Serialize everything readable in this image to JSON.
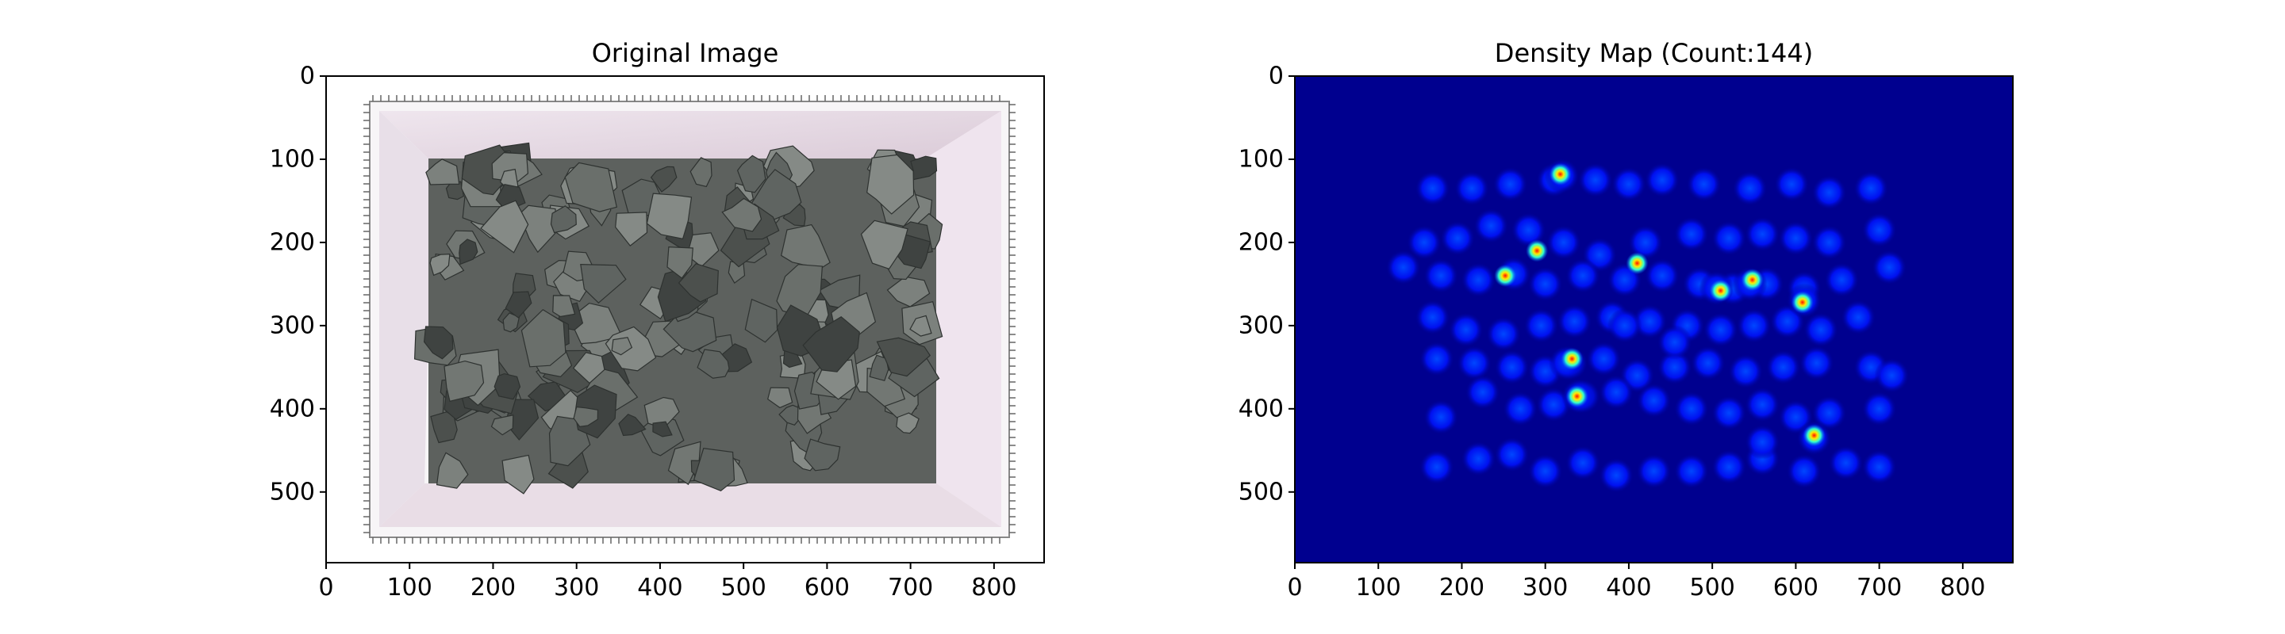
{
  "figure": {
    "panels": [
      {
        "title": "Original Image"
      },
      {
        "title": "Density Map (Count:144)"
      }
    ]
  },
  "chart_data": [
    {
      "type": "image",
      "title": "Original Image",
      "xlim": [
        0,
        860
      ],
      "ylim": [
        585,
        0
      ],
      "x_ticks": [
        0,
        100,
        200,
        300,
        400,
        500,
        600,
        700,
        800
      ],
      "y_ticks": [
        0,
        100,
        200,
        300,
        400,
        500
      ],
      "content": "photo of grey crushed rocks in a white tray with ruler borders",
      "colors": {
        "tray": "#e9dde6",
        "rock": "#6b6e6a"
      }
    },
    {
      "type": "heatmap",
      "title": "Density Map (Count:144)",
      "colormap": "jet",
      "count": 144,
      "xlim": [
        0,
        860
      ],
      "ylim": [
        585,
        0
      ],
      "x_ticks": [
        0,
        100,
        200,
        300,
        400,
        500,
        600,
        700,
        800
      ],
      "y_ticks": [
        0,
        100,
        200,
        300,
        400,
        500
      ],
      "colors": {
        "background": "#00008f",
        "blob": "#0000ff"
      },
      "points": [
        [
          165,
          135
        ],
        [
          212,
          135
        ],
        [
          258,
          130
        ],
        [
          310,
          125
        ],
        [
          360,
          125
        ],
        [
          400,
          130
        ],
        [
          440,
          125
        ],
        [
          490,
          130
        ],
        [
          545,
          135
        ],
        [
          595,
          130
        ],
        [
          640,
          140
        ],
        [
          690,
          135
        ],
        [
          155,
          200
        ],
        [
          195,
          195
        ],
        [
          235,
          180
        ],
        [
          280,
          185
        ],
        [
          322,
          200
        ],
        [
          365,
          215
        ],
        [
          420,
          200
        ],
        [
          475,
          190
        ],
        [
          520,
          195
        ],
        [
          560,
          190
        ],
        [
          600,
          195
        ],
        [
          640,
          200
        ],
        [
          700,
          185
        ],
        [
          130,
          230
        ],
        [
          175,
          240
        ],
        [
          220,
          245
        ],
        [
          262,
          238
        ],
        [
          300,
          250
        ],
        [
          345,
          240
        ],
        [
          395,
          245
        ],
        [
          440,
          240
        ],
        [
          485,
          250
        ],
        [
          525,
          255
        ],
        [
          565,
          250
        ],
        [
          610,
          255
        ],
        [
          655,
          245
        ],
        [
          712,
          230
        ],
        [
          165,
          290
        ],
        [
          205,
          305
        ],
        [
          250,
          310
        ],
        [
          295,
          300
        ],
        [
          335,
          295
        ],
        [
          380,
          290
        ],
        [
          425,
          295
        ],
        [
          470,
          300
        ],
        [
          510,
          305
        ],
        [
          550,
          300
        ],
        [
          590,
          295
        ],
        [
          630,
          305
        ],
        [
          675,
          290
        ],
        [
          170,
          340
        ],
        [
          215,
          345
        ],
        [
          260,
          350
        ],
        [
          300,
          355
        ],
        [
          330,
          345
        ],
        [
          370,
          340
        ],
        [
          410,
          360
        ],
        [
          455,
          350
        ],
        [
          495,
          345
        ],
        [
          540,
          355
        ],
        [
          585,
          350
        ],
        [
          625,
          345
        ],
        [
          690,
          350
        ],
        [
          715,
          360
        ],
        [
          175,
          410
        ],
        [
          225,
          380
        ],
        [
          270,
          400
        ],
        [
          310,
          395
        ],
        [
          345,
          385
        ],
        [
          385,
          380
        ],
        [
          430,
          390
        ],
        [
          475,
          400
        ],
        [
          520,
          405
        ],
        [
          560,
          395
        ],
        [
          600,
          410
        ],
        [
          640,
          405
        ],
        [
          700,
          400
        ],
        [
          170,
          470
        ],
        [
          220,
          460
        ],
        [
          260,
          455
        ],
        [
          300,
          475
        ],
        [
          345,
          465
        ],
        [
          385,
          480
        ],
        [
          430,
          475
        ],
        [
          475,
          475
        ],
        [
          520,
          470
        ],
        [
          560,
          460
        ],
        [
          610,
          475
        ],
        [
          660,
          465
        ],
        [
          700,
          470
        ],
        [
          325,
          345
        ],
        [
          340,
          385
        ],
        [
          505,
          255
        ],
        [
          545,
          250
        ],
        [
          610,
          270
        ],
        [
          622,
          435
        ],
        [
          320,
          120
        ],
        [
          395,
          300
        ],
        [
          455,
          320
        ],
        [
          560,
          440
        ]
      ],
      "hotspots": [
        [
          332,
          340
        ],
        [
          338,
          385
        ],
        [
          510,
          258
        ],
        [
          548,
          245
        ],
        [
          608,
          272
        ],
        [
          622,
          432
        ],
        [
          318,
          118
        ],
        [
          252,
          240
        ],
        [
          290,
          210
        ],
        [
          410,
          225
        ]
      ]
    }
  ]
}
